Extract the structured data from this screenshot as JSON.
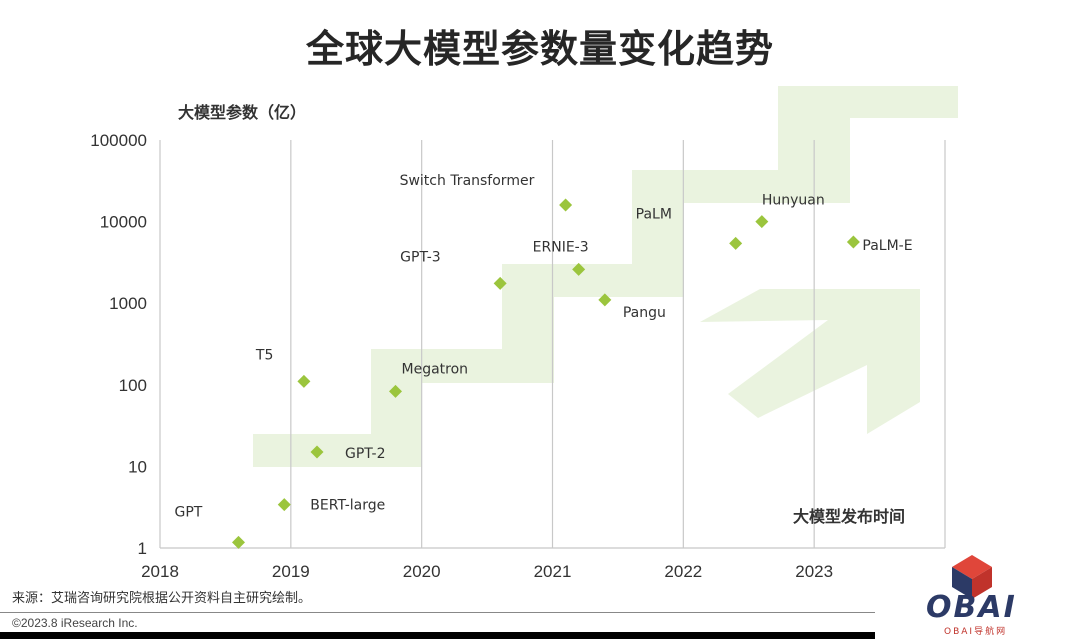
{
  "page": {
    "title": "全球大模型参数量变化趋势",
    "source": "来源：艾瑞咨询研究院根据公开资料自主研究绘制。",
    "copyright": "©2023.8 iResearch Inc.",
    "logo_text": "OBAI",
    "logo_sub": "OBAI导航网"
  },
  "colors": {
    "marker": "#9bc53d",
    "band": "#eaf3df",
    "grid": "#c8c8c8",
    "title": "#262626"
  },
  "chart_data": {
    "type": "scatter",
    "title": "全球大模型参数量变化趋势",
    "ylabel": "大模型参数（亿）",
    "xlabel": "大模型发布时间",
    "yscale": "log",
    "ylim": [
      1,
      100000
    ],
    "xlim": [
      2018,
      2024
    ],
    "x_ticks": [
      "2018",
      "2019",
      "2020",
      "2021",
      "2022",
      "2023"
    ],
    "y_ticks": [
      "1",
      "10",
      "100",
      "1000",
      "10000",
      "100000"
    ],
    "grid": "vertical",
    "points": [
      {
        "label": "GPT",
        "x": 2018.6,
        "y": 1.17
      },
      {
        "label": "BERT-large",
        "x": 2018.95,
        "y": 3.4
      },
      {
        "label": "GPT-2",
        "x": 2019.2,
        "y": 15
      },
      {
        "label": "T5",
        "x": 2019.1,
        "y": 110
      },
      {
        "label": "Megatron",
        "x": 2019.8,
        "y": 83
      },
      {
        "label": "GPT-3",
        "x": 2020.6,
        "y": 1750
      },
      {
        "label": "Switch Transformer",
        "x": 2021.1,
        "y": 16000
      },
      {
        "label": "ERNIE-3",
        "x": 2021.2,
        "y": 2600
      },
      {
        "label": "Pangu",
        "x": 2021.4,
        "y": 1100
      },
      {
        "label": "PaLM",
        "x": 2022.4,
        "y": 5400
      },
      {
        "label": "Hunyuan",
        "x": 2022.6,
        "y": 10000
      },
      {
        "label": "PaLM-E",
        "x": 2023.3,
        "y": 5620
      }
    ]
  }
}
